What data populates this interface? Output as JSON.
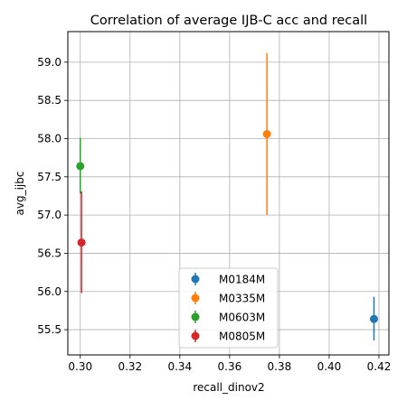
{
  "chart_data": {
    "type": "scatter",
    "title": "Correlation of average IJB-C acc and recall",
    "xlabel": "recall_dinov2",
    "ylabel": "avg_ijbc",
    "xlim": [
      0.295,
      0.424
    ],
    "ylim": [
      55.17,
      59.4
    ],
    "x_ticks": [
      0.3,
      0.32,
      0.34,
      0.36,
      0.38,
      0.4,
      0.42
    ],
    "x_tick_labels": [
      "0.30",
      "0.32",
      "0.34",
      "0.36",
      "0.38",
      "0.40",
      "0.42"
    ],
    "y_ticks": [
      55.5,
      56.0,
      56.5,
      57.0,
      57.5,
      58.0,
      58.5,
      59.0
    ],
    "y_tick_labels": [
      "55.5",
      "56.0",
      "56.5",
      "57.0",
      "57.5",
      "58.0",
      "58.5",
      "59.0"
    ],
    "grid": true,
    "legend_position": "bottom-center",
    "series": [
      {
        "name": "M0184M",
        "color": "#1f77b4",
        "x": 0.418,
        "y": 55.64,
        "err_low": 55.36,
        "err_high": 55.93
      },
      {
        "name": "M0335M",
        "color": "#ff7f0e",
        "x": 0.375,
        "y": 58.06,
        "err_low": 57.0,
        "err_high": 59.12
      },
      {
        "name": "M0603M",
        "color": "#2ca02c",
        "x": 0.3,
        "y": 57.64,
        "err_low": 57.28,
        "err_high": 58.01
      },
      {
        "name": "M0805M",
        "color": "#d62728",
        "x": 0.3005,
        "y": 56.64,
        "err_low": 55.98,
        "err_high": 57.31
      }
    ]
  }
}
